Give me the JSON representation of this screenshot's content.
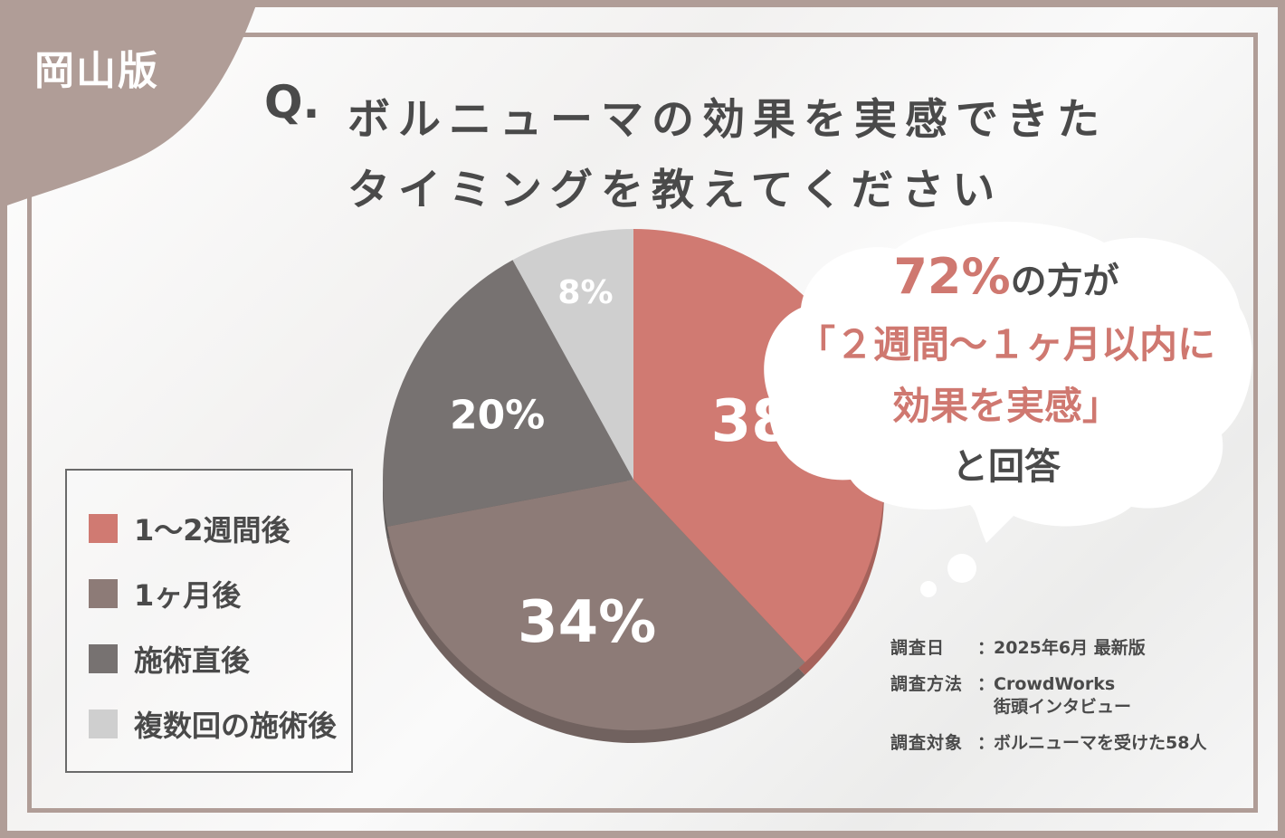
{
  "region_tag": "岡山版",
  "question": {
    "q_mark": "Q.",
    "line1": "ボルニューマの効果を実感できた",
    "line2": "タイミングを教えてください"
  },
  "colors": {
    "frame": "#b09d97",
    "accent": "#cf7870",
    "text": "#4a4a4a"
  },
  "callout": {
    "line1_highlight": "72%",
    "line1_rest": "の方が",
    "line2": "「２週間〜１ヶ月以内に",
    "line3": "効果を実感」",
    "line4": "と回答"
  },
  "survey": {
    "rows": [
      {
        "label": "調査日",
        "value": "2025年6月 最新版"
      },
      {
        "label": "調査方法",
        "value": "CrowdWorks",
        "value2": "街頭インタビュー"
      },
      {
        "label": "調査対象",
        "value": "ボルニューマを受けた58人"
      }
    ]
  },
  "chart_data": {
    "type": "pie",
    "title": "",
    "start_angle_deg": 0,
    "direction": "clockwise",
    "slices": [
      {
        "label": "1〜2週間後",
        "value": 38,
        "value_label": "38%",
        "color": "#d07a72"
      },
      {
        "label": "1ヶ月後",
        "value": 34,
        "value_label": "34%",
        "color": "#8d7b77"
      },
      {
        "label": "施術直後",
        "value": 20,
        "value_label": "20%",
        "color": "#777271"
      },
      {
        "label": "複数回の施術後",
        "value": 8,
        "value_label": "8%",
        "color": "#cfcfcf"
      }
    ],
    "legend_position": "left"
  }
}
